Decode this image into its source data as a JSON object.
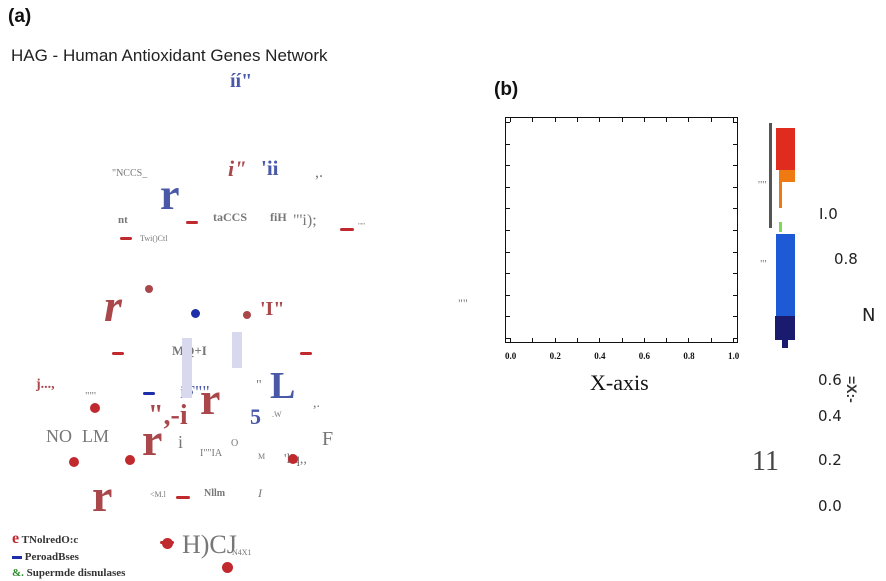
{
  "panel_a": {
    "label": "(a)",
    "title": "HAG - Human Antioxidant Genes Network",
    "node_labels": [
      "íí\"",
      "\"NCCS_",
      "i\"",
      "'ii",
      ",.",
      "r",
      "nt",
      "Twi()Ctl",
      "taCCS",
      "fiH",
      "\"'i);",
      "\"\"'",
      "r",
      "'I\"",
      "MQ+I",
      "j...,",
      "\"\"'",
      "iF\"\"",
      "\"",
      "L",
      ",.",
      "NO",
      "LM",
      "\",-i",
      "r",
      "5",
      ".W",
      "O",
      "r",
      "i",
      "I\"\"IA",
      "M",
      "'l'q,,",
      "F",
      "r",
      "<M.l",
      "Nllm",
      "I",
      "H)CJ",
      "N4X1"
    ],
    "legend": [
      {
        "marker": "e",
        "text": "TNolredO:c"
      },
      {
        "marker": "-",
        "text": "PeroadBses"
      },
      {
        "marker": "&.",
        "text": "Supermde disnulases"
      }
    ]
  },
  "panel_b": {
    "label": "(b)",
    "left_marks": [
      "\"\"",
      "'\"'",
      "\"'"
    ],
    "chart_data": {
      "type": "scatter",
      "xlabel": "X-axis",
      "x_ticks": [
        "0.0",
        "0.2",
        "0.4",
        "0.6",
        "0.8",
        "1.0"
      ],
      "points": []
    },
    "colorbar": {
      "labels_top": [
        "I.0",
        "0.8"
      ],
      "side_letter": "N",
      "labels_bottom": [
        "0.6",
        "0.4",
        "0.2",
        "0.0"
      ],
      "side_glyph": "11",
      "side_text": "=X:-",
      "colors": [
        "#e02b1f",
        "#f07a12",
        "#7ed957",
        "#1f5ad6",
        "#1a1a6e"
      ]
    }
  }
}
